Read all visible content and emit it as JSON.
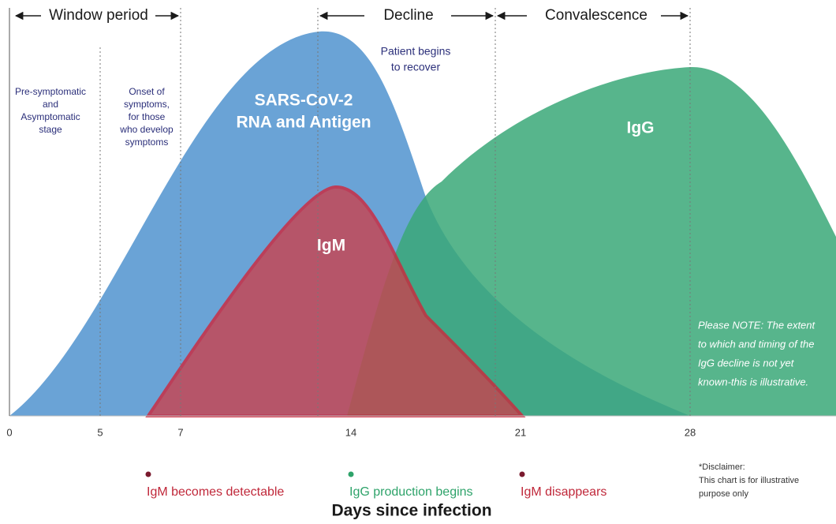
{
  "phases": [
    "Window period",
    "Decline",
    "Convalescence"
  ],
  "stages": [
    [
      "Pre-symptomatic",
      "and",
      "Asymptomatic",
      "stage"
    ],
    [
      "Onset of",
      "symptoms,",
      "for those",
      "who develop",
      "symptoms"
    ]
  ],
  "recover_note": [
    "Patient begins",
    "to recover"
  ],
  "curves": {
    "rna": [
      "SARS-CoV-2",
      "RNA and Antigen"
    ],
    "igm": "IgM",
    "igg": "IgG"
  },
  "x_axis": {
    "ticks": [
      "0",
      "5",
      "7",
      "14",
      "21",
      "28"
    ],
    "title": "Days since infection"
  },
  "events": [
    "IgM becomes detectable",
    "IgG production begins",
    "IgM disappears"
  ],
  "note": [
    "Please NOTE: The extent",
    "to which and timing of the",
    "IgG decline is not yet",
    "known-this is illustrative."
  ],
  "disclaimer": [
    "*Disclaimer:",
    "This chart is for illustrative",
    "purpose only"
  ]
}
